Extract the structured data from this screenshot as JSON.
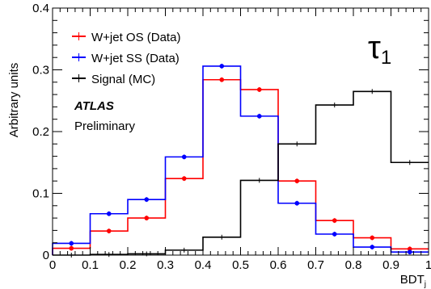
{
  "chart_data": {
    "type": "step",
    "title": "",
    "xlabel": "BDT",
    "xlabel_subscript": "j",
    "ylabel": "Arbitrary units",
    "xlim": [
      0,
      1
    ],
    "ylim": [
      0,
      0.4
    ],
    "x_ticks": [
      "0",
      "0.1",
      "0.2",
      "0.3",
      "0.4",
      "0.5",
      "0.6",
      "0.7",
      "0.8",
      "0.9",
      "1"
    ],
    "x_tick_values": [
      0,
      0.1,
      0.2,
      0.3,
      0.4,
      0.5,
      0.6,
      0.7,
      0.8,
      0.9,
      1.0
    ],
    "y_ticks": [
      "0",
      "0.1",
      "0.2",
      "0.3",
      "0.4"
    ],
    "y_tick_values": [
      0,
      0.1,
      0.2,
      0.3,
      0.4
    ],
    "grid": false,
    "legend_position": "top-left",
    "bin_edges": [
      0,
      0.1,
      0.2,
      0.3,
      0.4,
      0.5,
      0.6,
      0.7,
      0.8,
      0.9,
      1.0
    ],
    "series": [
      {
        "name": "W+jet OS (Data)",
        "color": "#ff0000",
        "markers": true,
        "values": [
          0.011,
          0.039,
          0.06,
          0.124,
          0.284,
          0.268,
          0.12,
          0.056,
          0.028,
          0.01
        ]
      },
      {
        "name": "W+jet SS (Data)",
        "color": "#0000ff",
        "markers": true,
        "values": [
          0.019,
          0.067,
          0.09,
          0.159,
          0.306,
          0.225,
          0.084,
          0.034,
          0.013,
          0.005
        ]
      },
      {
        "name": "Signal (MC)",
        "color": "#000000",
        "markers": false,
        "values": [
          0.0,
          0.001,
          0.002,
          0.008,
          0.029,
          0.121,
          0.18,
          0.243,
          0.265,
          0.15
        ]
      }
    ],
    "annotations": {
      "experiment": "ATLAS",
      "status": "Preliminary",
      "particle_label": "τ",
      "particle_subscript": "1"
    }
  }
}
